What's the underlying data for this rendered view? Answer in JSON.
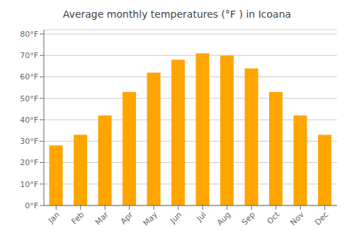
{
  "chart_data": {
    "type": "bar",
    "title": "Average monthly temperatures (°F ) in Icoana",
    "categories": [
      "Jan",
      "Feb",
      "Mar",
      "Apr",
      "May",
      "Jun",
      "Jul",
      "Aug",
      "Sep",
      "Oct",
      "Nov",
      "Dec"
    ],
    "values": [
      28,
      33,
      42,
      53,
      62,
      68,
      71,
      70,
      64,
      53,
      42,
      33
    ],
    "color": "#FFA500",
    "ylim": [
      0,
      82
    ],
    "yticks": [
      {
        "value": 0,
        "label": "0°F"
      },
      {
        "value": 10,
        "label": "10°F"
      },
      {
        "value": 20,
        "label": "20°F"
      },
      {
        "value": 30,
        "label": "30°F"
      },
      {
        "value": 40,
        "label": "40°F"
      },
      {
        "value": 50,
        "label": "50°F"
      },
      {
        "value": 60,
        "label": "60°F"
      },
      {
        "value": 70,
        "label": "70°F"
      },
      {
        "value": 80,
        "label": "80°F"
      }
    ],
    "grid": true
  }
}
